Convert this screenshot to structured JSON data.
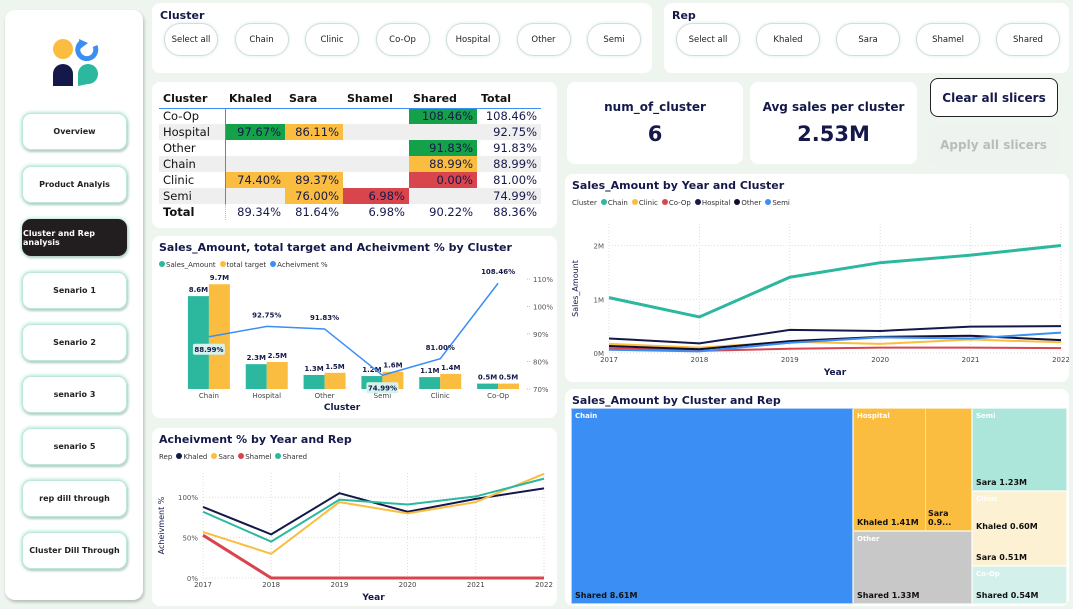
{
  "colors": {
    "teal": "#2bb89f",
    "yellow": "#fbbd3f",
    "blue": "#3b8ef3",
    "navy": "#14194a",
    "red": "#d9454d",
    "green": "#14a14a"
  },
  "sidebar": {
    "logo": "app-logo",
    "items": [
      {
        "label": "Overview",
        "active": false
      },
      {
        "label": "Product Analyis",
        "active": false
      },
      {
        "label": "Cluster and Rep analysis",
        "active": true
      },
      {
        "label": "Senario 1",
        "active": false
      },
      {
        "label": "Senario 2",
        "active": false
      },
      {
        "label": "senario 3",
        "active": false
      },
      {
        "label": "senario 5",
        "active": false
      },
      {
        "label": "rep dill through",
        "active": false
      },
      {
        "label": "Cluster Dill Through",
        "active": false
      }
    ]
  },
  "cluster_slicer": {
    "title": "Cluster",
    "options": [
      "Select all",
      "Chain",
      "Clinic",
      "Co-Op",
      "Hospital",
      "Other",
      "Semi"
    ]
  },
  "rep_slicer": {
    "title": "Rep",
    "options": [
      "Select all",
      "Khaled",
      "Sara",
      "Shamel",
      "Shared"
    ]
  },
  "matrix": {
    "headers": [
      "Cluster",
      "Khaled",
      "Sara",
      "Shamel",
      "Shared",
      "Total"
    ],
    "rows": [
      {
        "cluster": "Co-Op",
        "Khaled": "",
        "Sara": "",
        "Shamel": "",
        "Shared": "108.46%",
        "Total": "108.46%"
      },
      {
        "cluster": "Hospital",
        "Khaled": "97.67%",
        "Sara": "86.11%",
        "Shamel": "",
        "Shared": "",
        "Total": "92.75%"
      },
      {
        "cluster": "Other",
        "Khaled": "",
        "Sara": "",
        "Shamel": "",
        "Shared": "91.83%",
        "Total": "91.83%"
      },
      {
        "cluster": "Chain",
        "Khaled": "",
        "Sara": "",
        "Shamel": "",
        "Shared": "88.99%",
        "Total": "88.99%"
      },
      {
        "cluster": "Clinic",
        "Khaled": "74.40%",
        "Sara": "89.37%",
        "Shamel": "",
        "Shared": "0.00%",
        "Total": "81.00%"
      },
      {
        "cluster": "Semi",
        "Khaled": "",
        "Sara": "76.00%",
        "Shamel": "6.98%",
        "Shared": "",
        "Total": "74.99%"
      }
    ],
    "total_row": {
      "cluster": "Total",
      "Khaled": "89.34%",
      "Sara": "81.64%",
      "Shamel": "6.98%",
      "Shared": "90.22%",
      "Total": "88.36%"
    },
    "cell_colors": {
      "Co-Op.Shared": "g",
      "Hospital.Khaled": "g",
      "Hospital.Sara": "y",
      "Other.Shared": "g",
      "Chain.Shared": "y",
      "Clinic.Khaled": "y",
      "Clinic.Sara": "y",
      "Clinic.Shared": "r",
      "Semi.Sara": "y",
      "Semi.Shamel": "r"
    }
  },
  "kpis": [
    {
      "label": "num_of_cluster",
      "value": "6"
    },
    {
      "label": "Avg sales per cluster",
      "value": "2.53M"
    }
  ],
  "buttons": {
    "clear": "Clear all slicers",
    "apply": "Apply all slicers"
  },
  "chart_data": [
    {
      "type": "bar",
      "title": "Sales_Amount, total target and Acheivment % by Cluster",
      "xlabel": "Cluster",
      "ylabel": "",
      "categories": [
        "Chain",
        "Hospital",
        "Other",
        "Semi",
        "Clinic",
        "Co-Op"
      ],
      "series": [
        {
          "name": "Sales_Amount",
          "values": [
            8.6,
            2.3,
            1.3,
            1.2,
            1.1,
            0.5
          ],
          "labels": [
            "8.6M",
            "2.3M",
            "1.3M",
            "1.2M",
            "1.1M",
            "0.5M"
          ],
          "color": "#2bb89f"
        },
        {
          "name": "total target",
          "values": [
            9.7,
            2.5,
            1.5,
            1.6,
            1.4,
            0.5
          ],
          "labels": [
            "9.7M",
            "2.5M",
            "1.5M",
            "1.6M",
            "1.4M",
            "0.5M"
          ],
          "color": "#fbbd3f"
        }
      ],
      "line_series": {
        "name": "Acheivment %",
        "values": [
          88.99,
          92.75,
          91.83,
          74.99,
          81.0,
          108.46
        ],
        "labels": [
          "88.99%",
          "92.75%",
          "91.83%",
          "74.99%",
          "81.00%",
          "108.46%"
        ],
        "color": "#3b8ef3"
      },
      "y2_ticks": [
        "70%",
        "80%",
        "90%",
        "100%",
        "110%"
      ],
      "y2lim": [
        70,
        110
      ],
      "ylim": [
        0,
        10
      ]
    },
    {
      "type": "line",
      "title": "Acheivment % by Year and Rep",
      "legend_title": "Rep",
      "xlabel": "Year",
      "ylabel": "Acheivment %",
      "x": [
        "2017",
        "2018",
        "2019",
        "2020",
        "2021",
        "2022"
      ],
      "y_ticks": [
        "0%",
        "50%",
        "100%"
      ],
      "ylim": [
        0,
        130
      ],
      "series": [
        {
          "name": "Khaled",
          "color": "#14194a",
          "values": [
            88,
            54,
            105,
            82,
            98,
            111
          ]
        },
        {
          "name": "Sara",
          "color": "#fbbd3f",
          "values": [
            57,
            30,
            94,
            80,
            94,
            129
          ]
        },
        {
          "name": "Shamel",
          "color": "#d9454d",
          "values": [
            53,
            0,
            0,
            0,
            0,
            0
          ]
        },
        {
          "name": "Shared",
          "color": "#2bb89f",
          "values": [
            82,
            45,
            97,
            91,
            101,
            123
          ]
        }
      ]
    },
    {
      "type": "line",
      "title": "Sales_Amount by Year and Cluster",
      "legend_title": "Cluster",
      "xlabel": "Year",
      "ylabel": "Sales_Amount",
      "x": [
        "2017",
        "2018",
        "2019",
        "2020",
        "2021",
        "2022"
      ],
      "y_ticks": [
        "0M",
        "1M",
        "2M"
      ],
      "ylim": [
        0,
        2.4
      ],
      "series": [
        {
          "name": "Chain",
          "color": "#2bb89f",
          "values": [
            1.03,
            0.67,
            1.41,
            1.68,
            1.82,
            2.0
          ]
        },
        {
          "name": "Clinic",
          "color": "#fbbd3f",
          "values": [
            0.17,
            0.1,
            0.21,
            0.17,
            0.25,
            0.2
          ]
        },
        {
          "name": "Co-Op",
          "color": "#d9454d",
          "values": [
            0.09,
            0.04,
            0.08,
            0.1,
            0.1,
            0.09
          ]
        },
        {
          "name": "Hospital",
          "color": "#14194a",
          "values": [
            0.27,
            0.18,
            0.43,
            0.41,
            0.49,
            0.5
          ]
        },
        {
          "name": "Other",
          "color": "#0d1033",
          "values": [
            0.13,
            0.07,
            0.22,
            0.3,
            0.32,
            0.24
          ]
        },
        {
          "name": "Semi",
          "color": "#3b8ef3",
          "values": [
            0.06,
            0.03,
            0.19,
            0.29,
            0.27,
            0.38
          ]
        }
      ]
    },
    {
      "type": "treemap",
      "title": "Sales_Amount by Cluster and Rep",
      "groups": [
        {
          "cluster": "Chain",
          "color": "#3b8ef3",
          "items": [
            {
              "rep": "Shared",
              "label": "Shared 8.61M"
            }
          ]
        },
        {
          "cluster": "Hospital",
          "color": "#fbbd3f",
          "items": [
            {
              "rep": "Khaled",
              "label": "Khaled 1.41M"
            },
            {
              "rep": "Sara",
              "label": "Sara 0.9..."
            }
          ]
        },
        {
          "cluster": "Other",
          "color": "#c8c8c8",
          "items": [
            {
              "rep": "Shared",
              "label": "Shared 1.33M"
            }
          ]
        },
        {
          "cluster": "Semi",
          "color": "#ace5d9",
          "items": [
            {
              "rep": "Sara",
              "label": "Sara 1.23M"
            }
          ]
        },
        {
          "cluster": "Clinic",
          "color": "#fdf1d3",
          "items": [
            {
              "rep": "Khaled",
              "label": "Khaled 0.60M"
            },
            {
              "rep": "Sara",
              "label": "Sara 0.51M"
            }
          ]
        },
        {
          "cluster": "Co-Op",
          "color": "#d3f0ea",
          "items": [
            {
              "rep": "Shared",
              "label": "Shared 0.54M"
            }
          ]
        }
      ]
    }
  ]
}
